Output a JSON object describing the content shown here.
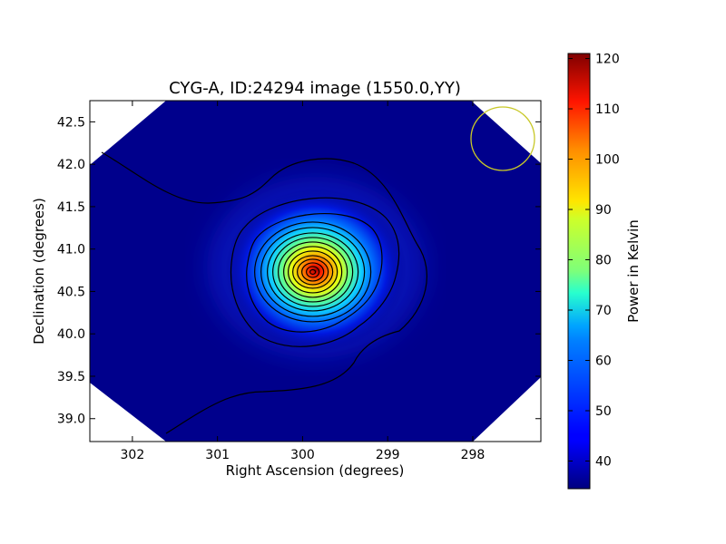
{
  "chart_data": {
    "type": "heatmap",
    "title": "CYG-A, ID:24294 image (1550.0,YY)",
    "xlabel": "Right Ascension (degrees)",
    "ylabel": "Declination (degrees)",
    "xlim": [
      302.5,
      297.2
    ],
    "ylim": [
      38.73,
      42.75
    ],
    "x_ticks": [
      302,
      301,
      300,
      299,
      298
    ],
    "y_ticks": [
      39.0,
      39.5,
      40.0,
      40.5,
      41.0,
      41.5,
      42.0,
      42.5
    ],
    "x_tick_labels": [
      "302",
      "301",
      "300",
      "299",
      "298"
    ],
    "y_tick_labels": [
      "39.0",
      "39.5",
      "40.0",
      "40.5",
      "41.0",
      "41.5",
      "42.0",
      "42.5"
    ],
    "peak": {
      "ra": 299.87,
      "dec": 40.73,
      "value": 120
    },
    "background_value": 35,
    "beam_circle": {
      "ra": 297.65,
      "dec": 42.3,
      "color": "#c8c828"
    },
    "colorbar": {
      "label": "Power in Kelvin",
      "min": 34.5,
      "max": 121,
      "ticks": [
        40,
        50,
        60,
        70,
        80,
        90,
        100,
        110,
        120
      ],
      "tick_labels": [
        "40",
        "50",
        "60",
        "70",
        "80",
        "90",
        "100",
        "110",
        "120"
      ],
      "colormap": "jet"
    },
    "contour_color": "#000000",
    "grid": false
  }
}
